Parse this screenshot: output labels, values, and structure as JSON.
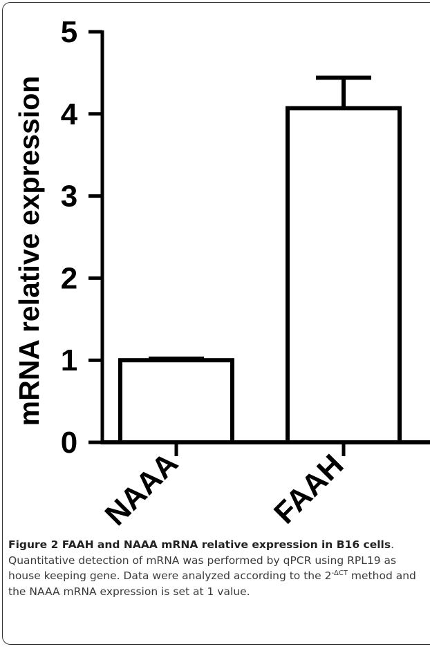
{
  "chart_data": {
    "type": "bar",
    "categories": [
      "NAAA",
      "FAAH"
    ],
    "values": [
      1.0,
      4.07
    ],
    "error_bars": [
      0.02,
      0.37
    ],
    "ylabel": "mRNA relative expression",
    "ylim": [
      0,
      5
    ],
    "yticks": [
      0,
      1,
      2,
      3,
      4,
      5
    ],
    "grid": false
  },
  "caption": {
    "label": "Figure 2 FAAH and NAAA mRNA relative expression in B16 cells",
    "text_before_sup": ". Quantitative detection of mRNA was performed by qPCR using RPL19 as house keeping gene. Data were analyzed according to the 2",
    "sup": "-ΔCT",
    "text_after_sup": " method and the NAAA mRNA expression is set at 1 value."
  },
  "colors": {
    "bar_fill": "#ffffff",
    "stroke": "#000000"
  }
}
